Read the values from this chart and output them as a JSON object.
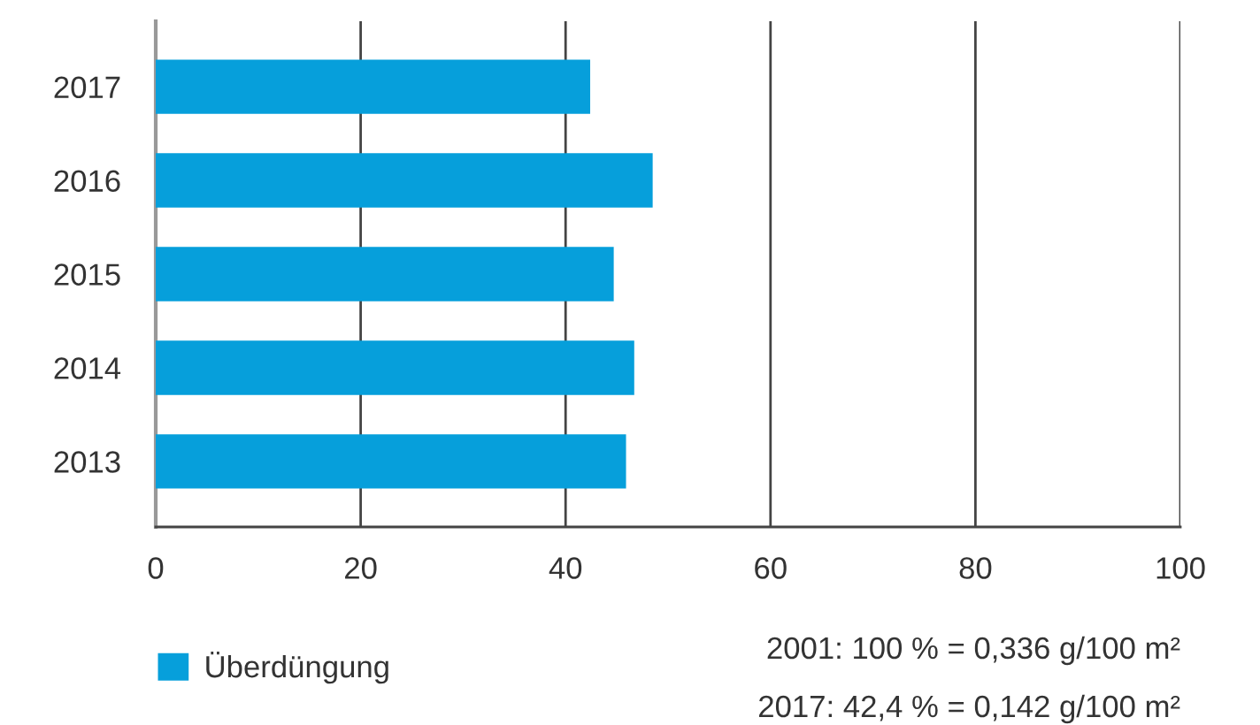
{
  "chart_data": {
    "type": "bar",
    "orientation": "horizontal",
    "categories": [
      "2017",
      "2016",
      "2015",
      "2014",
      "2013"
    ],
    "series": [
      {
        "name": "Überdüngung",
        "color": "#069fdb",
        "values": [
          42.4,
          48.5,
          44.7,
          46.7,
          45.9
        ]
      }
    ],
    "xlim": [
      0,
      100
    ],
    "xticks": [
      0,
      20,
      40,
      60,
      80,
      100
    ],
    "grid": "x",
    "legend": "bottom left",
    "annotations": [
      "2001: 100 % = 0,336 g/100 m²",
      "2017: 42,4 % = 0,142 g/100 m²"
    ]
  }
}
